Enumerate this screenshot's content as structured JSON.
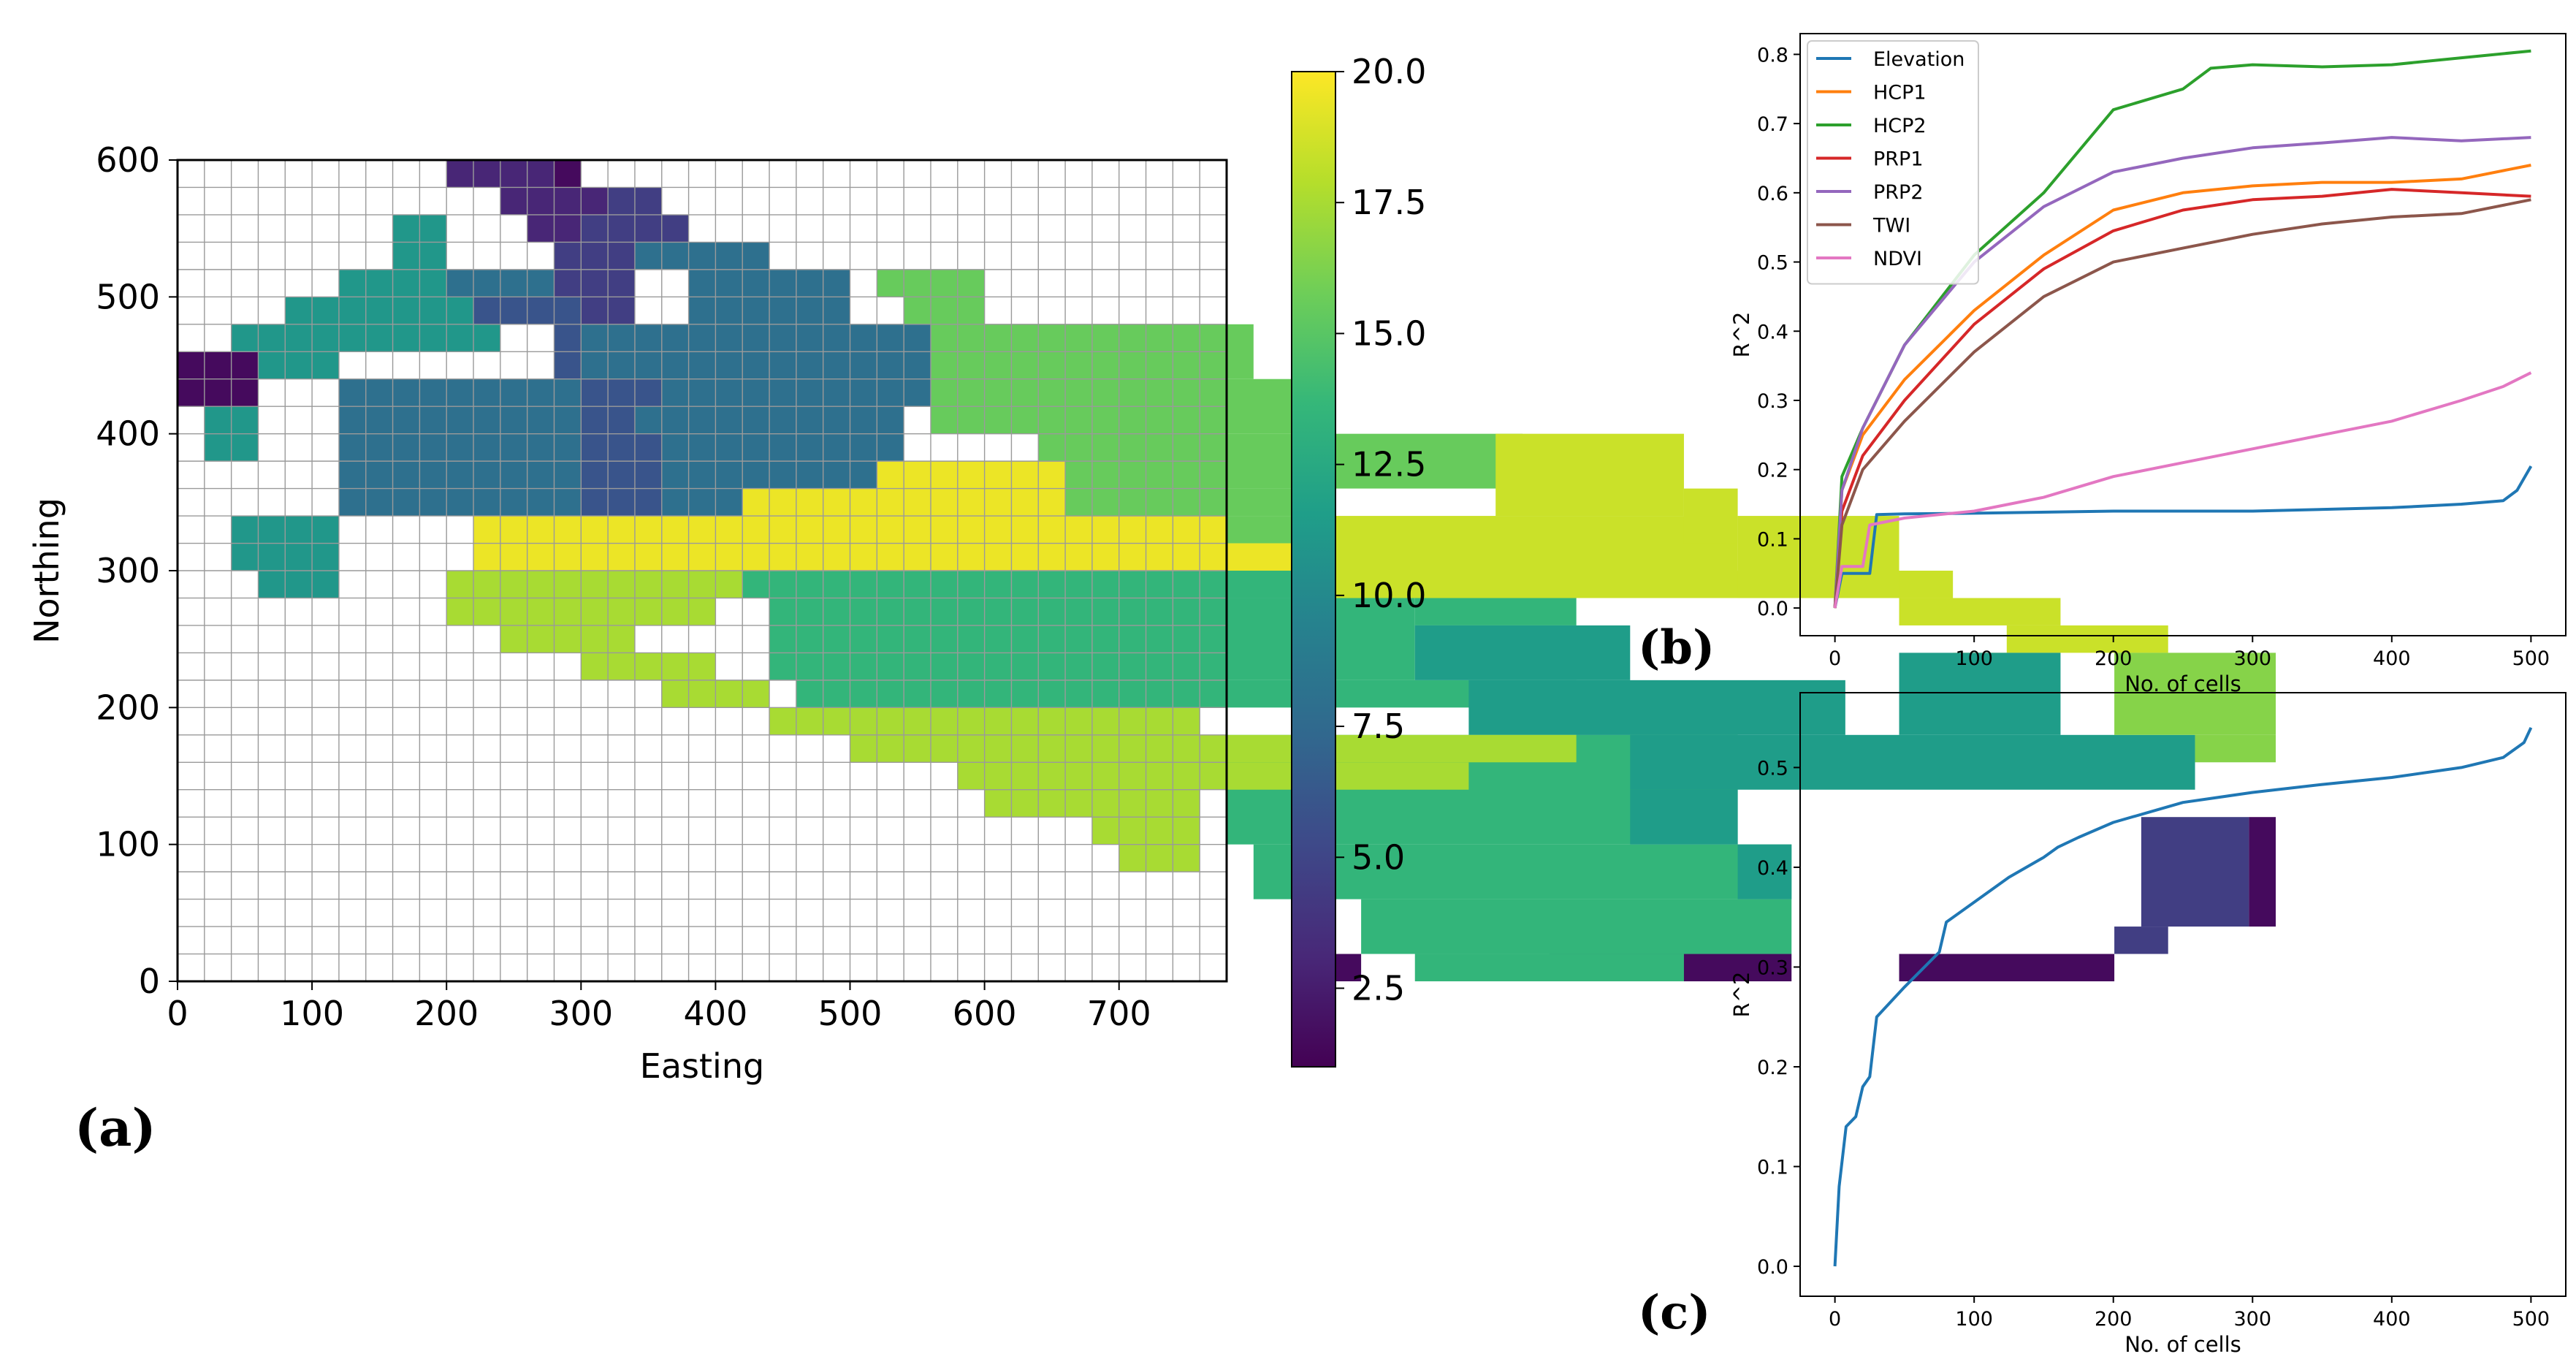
{
  "panels": {
    "a": "(a)",
    "b": "(b)",
    "c": "(c)"
  },
  "chart_data": [
    {
      "id": "a",
      "type": "heatmap",
      "title": "",
      "xlabel": "Easting",
      "ylabel": "Northing",
      "xlim": [
        0,
        780
      ],
      "ylim": [
        0,
        600
      ],
      "xticks": [
        0,
        100,
        200,
        300,
        400,
        500,
        600,
        700
      ],
      "yticks": [
        0,
        100,
        200,
        300,
        400,
        500,
        600
      ],
      "cell_size": 20,
      "colormap": "viridis",
      "colorbar": {
        "min": 1,
        "max": 20,
        "ticks": [
          "2.5",
          "5.0",
          "7.5",
          "10.0",
          "12.5",
          "15.0",
          "17.5",
          "20.0"
        ]
      },
      "regions": [
        {
          "value": 3.0,
          "cells": [
            [
              10,
              580,
              14,
              600
            ],
            [
              12,
              560,
              16,
              580
            ],
            [
              13,
              540,
              15,
              560
            ]
          ]
        },
        {
          "value": 1.5,
          "cells": [
            [
              14,
              580,
              15,
              600
            ],
            [
              0,
              420,
              3,
              460
            ],
            [
              43,
              0,
              44,
              20
            ],
            [
              51,
              0,
              60,
              20
            ],
            [
              64,
              0,
              72,
              20
            ],
            [
              77,
              40,
              78,
              120
            ]
          ]
        },
        {
          "value": 4.5,
          "cells": [
            [
              16,
              560,
              18,
              580
            ],
            [
              15,
              540,
              19,
              560
            ],
            [
              14,
              520,
              18,
              540
            ],
            [
              14,
              500,
              17,
              520
            ],
            [
              15,
              480,
              17,
              500
            ],
            [
              73,
              40,
              77,
              120
            ],
            [
              72,
              20,
              74,
              40
            ]
          ]
        },
        {
          "value": 11.0,
          "cells": [
            [
              8,
              520,
              10,
              560
            ],
            [
              6,
              500,
              11,
              520
            ],
            [
              4,
              480,
              14,
              500
            ],
            [
              2,
              460,
              12,
              480
            ],
            [
              3,
              440,
              6,
              460
            ],
            [
              1,
              380,
              3,
              420
            ],
            [
              2,
              300,
              6,
              340
            ],
            [
              3,
              280,
              6,
              300
            ]
          ]
        },
        {
          "value": 6.0,
          "cells": [
            [
              11,
              480,
              15,
              500
            ],
            [
              14,
              460,
              17,
              480
            ],
            [
              14,
              400,
              18,
              460
            ],
            [
              15,
              340,
              18,
              400
            ],
            [
              12,
              320,
              15,
              340
            ]
          ]
        },
        {
          "value": 8.0,
          "cells": [
            [
              10,
              500,
              14,
              520
            ],
            [
              15,
              440,
              20,
              480
            ],
            [
              20,
              380,
              27,
              480
            ],
            [
              18,
              340,
              27,
              400
            ],
            [
              6,
              340,
              15,
              440
            ],
            [
              18,
              400,
              20,
              440
            ],
            [
              17,
              520,
              22,
              540
            ],
            [
              19,
              480,
              25,
              520
            ],
            [
              20,
              420,
              30,
              480
            ],
            [
              17,
              400,
              23,
              420
            ]
          ]
        },
        {
          "value": 15.5,
          "cells": [
            [
              26,
              500,
              30,
              520
            ],
            [
              27,
              480,
              30,
              500
            ],
            [
              28,
              440,
              40,
              480
            ],
            [
              28,
              400,
              43,
              440
            ],
            [
              32,
              360,
              50,
              400
            ],
            [
              31,
              340,
              42,
              360
            ],
            [
              34,
              320,
              42,
              340
            ]
          ]
        },
        {
          "value": 19.5,
          "cells": [
            [
              11,
              300,
              21,
              340
            ],
            [
              15,
              320,
              21,
              340
            ],
            [
              21,
              280,
              31,
              360
            ],
            [
              26,
              320,
              33,
              380
            ],
            [
              31,
              300,
              39,
              340
            ],
            [
              39,
              300,
              42,
              320
            ]
          ]
        },
        {
          "value": 18.5,
          "cells": [
            [
              42,
              280,
              66,
              300
            ],
            [
              43,
              300,
              58,
              340
            ],
            [
              49,
              340,
              56,
              400
            ],
            [
              56,
              320,
              58,
              360
            ],
            [
              58,
              280,
              64,
              340
            ],
            [
              64,
              260,
              70,
              280
            ],
            [
              68,
              240,
              74,
              260
            ],
            [
              66,
              220,
              68,
              240
            ]
          ]
        },
        {
          "value": 13.5,
          "cells": [
            [
              21,
              280,
              42,
              300
            ],
            [
              22,
              220,
              46,
              280
            ],
            [
              46,
              260,
              52,
              280
            ],
            [
              23,
              200,
              52,
              220
            ],
            [
              52,
              180,
              58,
              200
            ],
            [
              39,
              100,
              58,
              180
            ],
            [
              40,
              60,
              60,
              100
            ],
            [
              44,
              20,
              60,
              60
            ],
            [
              46,
              0,
              56,
              20
            ]
          ]
        },
        {
          "value": 11.5,
          "cells": [
            [
              46,
              220,
              54,
              260
            ],
            [
              48,
              180,
              62,
              220
            ],
            [
              54,
              140,
              75,
              180
            ],
            [
              64,
              180,
              70,
              240
            ],
            [
              54,
              100,
              58,
              140
            ],
            [
              58,
              60,
              60,
              100
            ]
          ]
        },
        {
          "value": 17.5,
          "cells": [
            [
              10,
              280,
              21,
              300
            ],
            [
              10,
              260,
              20,
              280
            ],
            [
              12,
              240,
              17,
              260
            ],
            [
              15,
              220,
              20,
              240
            ],
            [
              18,
              200,
              22,
              220
            ],
            [
              22,
              180,
              38,
              200
            ],
            [
              25,
              160,
              52,
              180
            ],
            [
              29,
              140,
              48,
              160
            ],
            [
              30,
              120,
              38,
              140
            ],
            [
              34,
              100,
              38,
              120
            ],
            [
              35,
              80,
              38,
              100
            ]
          ]
        },
        {
          "value": 16.5,
          "cells": [
            [
              72,
              180,
              78,
              240
            ],
            [
              75,
              160,
              78,
              180
            ]
          ]
        }
      ]
    },
    {
      "id": "b",
      "type": "line",
      "title": "",
      "xlabel": "No. of cells",
      "ylabel": "R^2",
      "xlim": [
        -25,
        525
      ],
      "ylim": [
        -0.04,
        0.83
      ],
      "xticks": [
        0,
        100,
        200,
        300,
        400,
        500
      ],
      "yticks": [
        0.0,
        0.1,
        0.2,
        0.3,
        0.4,
        0.5,
        0.6,
        0.7,
        0.8
      ],
      "legend_position": "top-left",
      "series": [
        {
          "name": "Elevation",
          "color": "#1f77b4",
          "x": [
            0,
            5,
            10,
            15,
            25,
            30,
            50,
            100,
            200,
            300,
            400,
            450,
            480,
            490,
            500
          ],
          "y": [
            0.0,
            0.05,
            0.05,
            0.05,
            0.05,
            0.135,
            0.136,
            0.137,
            0.14,
            0.14,
            0.145,
            0.15,
            0.155,
            0.17,
            0.205
          ]
        },
        {
          "name": "HCP1",
          "color": "#ff7f0e",
          "x": [
            0,
            5,
            20,
            50,
            100,
            150,
            200,
            250,
            300,
            350,
            400,
            450,
            500
          ],
          "y": [
            0.0,
            0.17,
            0.25,
            0.33,
            0.43,
            0.51,
            0.575,
            0.6,
            0.61,
            0.615,
            0.615,
            0.62,
            0.64
          ]
        },
        {
          "name": "HCP2",
          "color": "#2ca02c",
          "x": [
            0,
            5,
            20,
            50,
            100,
            150,
            200,
            250,
            270,
            300,
            350,
            400,
            450,
            500
          ],
          "y": [
            0.0,
            0.19,
            0.26,
            0.38,
            0.51,
            0.6,
            0.72,
            0.75,
            0.78,
            0.785,
            0.782,
            0.785,
            0.795,
            0.805
          ]
        },
        {
          "name": "PRP1",
          "color": "#d62728",
          "x": [
            0,
            5,
            20,
            50,
            100,
            150,
            200,
            250,
            300,
            350,
            400,
            450,
            500
          ],
          "y": [
            0.0,
            0.14,
            0.22,
            0.3,
            0.41,
            0.49,
            0.545,
            0.575,
            0.59,
            0.595,
            0.605,
            0.6,
            0.595
          ]
        },
        {
          "name": "PRP2",
          "color": "#9467bd",
          "x": [
            0,
            5,
            20,
            50,
            100,
            150,
            200,
            250,
            300,
            350,
            400,
            450,
            500
          ],
          "y": [
            0.0,
            0.17,
            0.26,
            0.38,
            0.5,
            0.58,
            0.63,
            0.65,
            0.665,
            0.672,
            0.68,
            0.675,
            0.68
          ]
        },
        {
          "name": "TWI",
          "color": "#8c564b",
          "x": [
            0,
            5,
            20,
            50,
            100,
            150,
            200,
            250,
            300,
            350,
            400,
            450,
            500
          ],
          "y": [
            0.0,
            0.12,
            0.2,
            0.27,
            0.37,
            0.45,
            0.5,
            0.52,
            0.54,
            0.555,
            0.565,
            0.57,
            0.59
          ]
        },
        {
          "name": "NDVI",
          "color": "#e377c2",
          "x": [
            0,
            5,
            20,
            25,
            50,
            100,
            150,
            200,
            250,
            300,
            350,
            400,
            450,
            480,
            500
          ],
          "y": [
            0.0,
            0.06,
            0.06,
            0.12,
            0.13,
            0.14,
            0.16,
            0.19,
            0.21,
            0.23,
            0.25,
            0.27,
            0.3,
            0.32,
            0.34
          ]
        }
      ]
    },
    {
      "id": "c",
      "type": "line",
      "title": "",
      "xlabel": "No. of cells",
      "ylabel": "R^2",
      "xlim": [
        -25,
        525
      ],
      "ylim": [
        -0.03,
        0.575
      ],
      "xticks": [
        0,
        100,
        200,
        300,
        400,
        500
      ],
      "yticks": [
        0.0,
        0.1,
        0.2,
        0.3,
        0.4,
        0.5
      ],
      "series": [
        {
          "name": "R^2",
          "color": "#1f77b4",
          "x": [
            0,
            3,
            8,
            15,
            20,
            25,
            30,
            50,
            75,
            80,
            100,
            125,
            150,
            160,
            175,
            200,
            250,
            300,
            350,
            400,
            450,
            480,
            495,
            500
          ],
          "y": [
            0.0,
            0.08,
            0.14,
            0.15,
            0.18,
            0.19,
            0.25,
            0.28,
            0.315,
            0.345,
            0.365,
            0.39,
            0.41,
            0.42,
            0.43,
            0.445,
            0.465,
            0.475,
            0.483,
            0.49,
            0.5,
            0.51,
            0.525,
            0.54
          ]
        }
      ]
    }
  ]
}
